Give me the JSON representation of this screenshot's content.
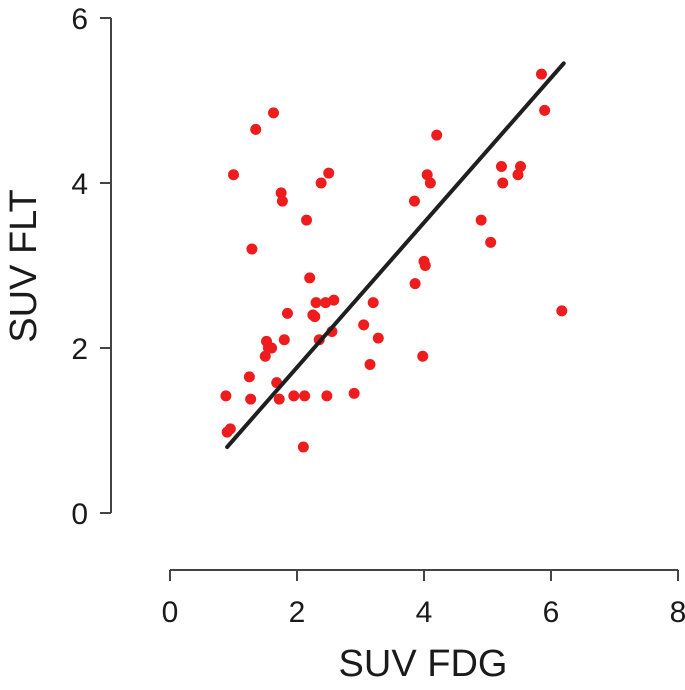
{
  "chart_data": {
    "type": "scatter",
    "title": "",
    "xlabel": "SUV FDG",
    "ylabel": "SUV FLT",
    "xlim": [
      0,
      8
    ],
    "ylim": [
      0,
      6
    ],
    "xticks": [
      "0",
      "2",
      "4",
      "6",
      "8"
    ],
    "yticks": [
      "0",
      "2",
      "4",
      "6"
    ],
    "grid": false,
    "legend": "none",
    "colors": {
      "points": "#ee1c1c",
      "trendline": "#1f1f1f",
      "axes": "#444444"
    },
    "trendline": {
      "x": [
        0.9,
        6.2
      ],
      "y": [
        0.8,
        5.45
      ]
    },
    "series": [
      {
        "x": [
          0.88,
          0.9,
          0.95,
          1.0,
          1.25,
          1.27,
          1.29,
          1.35,
          1.5,
          1.52,
          1.55,
          1.6,
          1.63,
          1.68,
          1.72,
          1.75,
          1.77,
          1.8,
          1.85,
          1.95,
          2.1,
          2.12,
          2.15,
          2.2,
          2.25,
          2.28,
          2.3,
          2.35,
          2.38,
          2.45,
          2.47,
          2.5,
          2.55,
          2.58,
          2.9,
          3.05,
          3.15,
          3.2,
          3.28,
          3.85,
          3.86,
          3.98,
          4.0,
          4.02,
          4.05,
          4.1,
          4.2,
          4.9,
          5.05,
          5.22,
          5.24,
          5.48,
          5.52,
          5.85,
          5.9,
          6.17
        ],
        "y": [
          1.42,
          0.98,
          1.02,
          4.1,
          1.65,
          1.38,
          3.2,
          4.65,
          1.9,
          2.08,
          2.0,
          2.0,
          4.85,
          1.58,
          1.38,
          3.88,
          3.78,
          2.1,
          2.42,
          1.42,
          0.8,
          1.42,
          3.55,
          2.85,
          2.4,
          2.38,
          2.55,
          2.1,
          4.0,
          2.55,
          1.42,
          4.12,
          2.2,
          2.58,
          1.45,
          2.28,
          1.8,
          2.55,
          2.12,
          3.78,
          2.78,
          1.9,
          3.05,
          3.0,
          4.1,
          4.0,
          4.58,
          3.55,
          3.28,
          4.2,
          4.0,
          4.1,
          4.2,
          5.32,
          4.88,
          2.45
        ]
      }
    ]
  }
}
